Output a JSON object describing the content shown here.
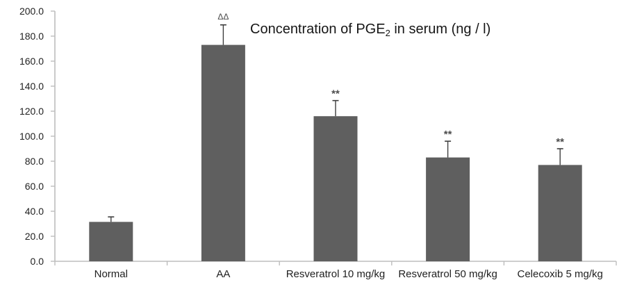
{
  "chart_data": {
    "type": "bar",
    "title": {
      "prefix": "Concentration of PGE",
      "subscript": "2",
      "suffix": " in serum (ng / l)"
    },
    "categories": [
      "Normal",
      "AA",
      "Resveratrol 10 mg/kg",
      "Resveratrol 50 mg/kg",
      "Celecoxib 5 mg/kg"
    ],
    "values": [
      31.5,
      173,
      116,
      83,
      77
    ],
    "errors": [
      4,
      16,
      12.5,
      13,
      13
    ],
    "annotations": [
      "",
      "ΔΔ",
      "**",
      "**",
      "**"
    ],
    "xlabel": "",
    "ylabel": "",
    "ylim": [
      0,
      200
    ],
    "ytick_step": 20,
    "ytick_labels": [
      "0.0",
      "20.0",
      "40.0",
      "60.0",
      "80.0",
      "100.0",
      "120.0",
      "140.0",
      "160.0",
      "180.0",
      "200.0"
    ],
    "grid": false,
    "legend": "none",
    "colors": {
      "bar": "#5f5f5f",
      "axis": "#bdbdbd",
      "error_bar": "#3f3f3f",
      "annotation": "#4d4d4d",
      "tick_label": "#1f1f1f",
      "title": "#161616",
      "background": "#ffffff"
    }
  }
}
